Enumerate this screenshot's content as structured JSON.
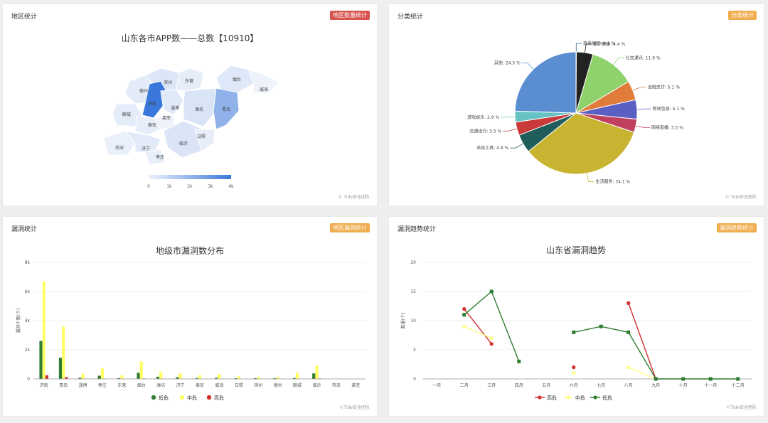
{
  "panels": {
    "region": {
      "title": "地区统计",
      "tag": "地区数量统计",
      "tag_color": "#d9534f",
      "watermark": "© Tide安全团队"
    },
    "category": {
      "title": "分类统计",
      "tag": "分类统计",
      "tag_color": "#f0ad4e",
      "watermark": "© Tide安全团队"
    },
    "vuln": {
      "title": "漏洞统计",
      "tag": "地区漏洞统计",
      "tag_color": "#f0ad4e",
      "watermark": "©Tide安全团队"
    },
    "trend": {
      "title": "漏洞趋势统计",
      "tag": "漏洞趋势统计",
      "tag_color": "#f0ad4e",
      "watermark": "©Tide安全团队"
    }
  },
  "chart_data": [
    {
      "type": "map",
      "title": "山东各市APP数——总数【10910】",
      "regions": [
        {
          "name": "德州",
          "level": "light"
        },
        {
          "name": "滨州",
          "level": "light"
        },
        {
          "name": "东营",
          "level": "light"
        },
        {
          "name": "烟台",
          "level": "light"
        },
        {
          "name": "威海",
          "level": "light"
        },
        {
          "name": "济南",
          "level": "dark"
        },
        {
          "name": "淄博",
          "level": "light"
        },
        {
          "name": "潍坊",
          "level": "light"
        },
        {
          "name": "青岛",
          "level": "medium"
        },
        {
          "name": "聊城",
          "level": "light"
        },
        {
          "name": "泰安",
          "level": "light"
        },
        {
          "name": "莱芜",
          "level": "light"
        },
        {
          "name": "日照",
          "level": "light"
        },
        {
          "name": "菏泽",
          "level": "light"
        },
        {
          "name": "济宁",
          "level": "light"
        },
        {
          "name": "临沂",
          "level": "light"
        },
        {
          "name": "枣庄",
          "level": "light"
        }
      ],
      "visualmap_labels": [
        "0",
        "1k",
        "2k",
        "3k",
        "4k"
      ]
    },
    {
      "type": "pie",
      "slices": [
        {
          "label": "政务便民: 0.1 %",
          "value": 0.1,
          "color": "#2c6e9e"
        },
        {
          "label": "医疗健康: 4.4 %",
          "value": 4.4,
          "color": "#222222"
        },
        {
          "label": "社交通讯: 11.9 %",
          "value": 11.9,
          "color": "#8fd16a"
        },
        {
          "label": "金融支付: 5.1 %",
          "value": 5.1,
          "color": "#e07b39"
        },
        {
          "label": "新闻信息: 5.1 %",
          "value": 5.1,
          "color": "#5a5fc4"
        },
        {
          "label": "网络直播: 3.5 %",
          "value": 3.5,
          "color": "#c0405e"
        },
        {
          "label": "生活服务: 34.1 %",
          "value": 34.1,
          "color": "#c9b431"
        },
        {
          "label": "系统工具: 4.9 %",
          "value": 4.9,
          "color": "#1f5e5a"
        },
        {
          "label": "交通出行: 3.5 %",
          "value": 3.5,
          "color": "#c93a3a"
        },
        {
          "label": "游戏娱乐: 2.9 %",
          "value": 2.9,
          "color": "#67c2c4"
        },
        {
          "label": "其他: 24.5 %",
          "value": 24.5,
          "color": "#5b8ed1"
        }
      ]
    },
    {
      "type": "bar",
      "title": "地级市漏洞数分布",
      "ylabel": "漏洞个数(个)",
      "ylim": [
        0,
        8000
      ],
      "y_ticks": [
        "0",
        "2k",
        "4k",
        "6k",
        "8k"
      ],
      "categories": [
        "济南",
        "青岛",
        "淄博",
        "枣庄",
        "东营",
        "烟台",
        "潍坊",
        "济宁",
        "泰安",
        "威海",
        "日照",
        "滨州",
        "德州",
        "聊城",
        "临沂",
        "菏泽",
        "莱芜"
      ],
      "series": [
        {
          "name": "低危",
          "color": "#2e7d32",
          "values": [
            2600,
            1450,
            80,
            220,
            60,
            420,
            150,
            120,
            60,
            80,
            50,
            50,
            50,
            60,
            380,
            0,
            0
          ]
        },
        {
          "name": "中危",
          "color": "#ffff66",
          "values": [
            6700,
            3600,
            350,
            720,
            250,
            1200,
            500,
            380,
            250,
            330,
            180,
            150,
            150,
            420,
            900,
            0,
            0
          ]
        },
        {
          "name": "高危",
          "color": "#d32f2f",
          "values": [
            250,
            120,
            10,
            20,
            5,
            30,
            15,
            10,
            5,
            10,
            5,
            5,
            5,
            5,
            30,
            0,
            0
          ]
        }
      ]
    },
    {
      "type": "line",
      "title": "山东省漏洞趋势",
      "ylabel": "数量(个)",
      "ylim": [
        0,
        20
      ],
      "y_ticks": [
        "0",
        "5",
        "10",
        "15",
        "20"
      ],
      "categories": [
        "一月",
        "二月",
        "三月",
        "四月",
        "五月",
        "六月",
        "七月",
        "八月",
        "九月",
        "十月",
        "十一月",
        "十二月"
      ],
      "series": [
        {
          "name": "高危",
          "color": "#d32f2f",
          "values": [
            null,
            12,
            6,
            null,
            null,
            2,
            null,
            13,
            0,
            null,
            null,
            null
          ]
        },
        {
          "name": "中危",
          "color": "#ffff88",
          "values": [
            null,
            9,
            7,
            null,
            null,
            1,
            null,
            2,
            0,
            null,
            null,
            null
          ]
        },
        {
          "name": "低危",
          "color": "#2e7d32",
          "values": [
            null,
            11,
            15,
            3,
            null,
            8,
            9,
            8,
            0,
            0,
            0,
            0
          ]
        }
      ]
    }
  ]
}
